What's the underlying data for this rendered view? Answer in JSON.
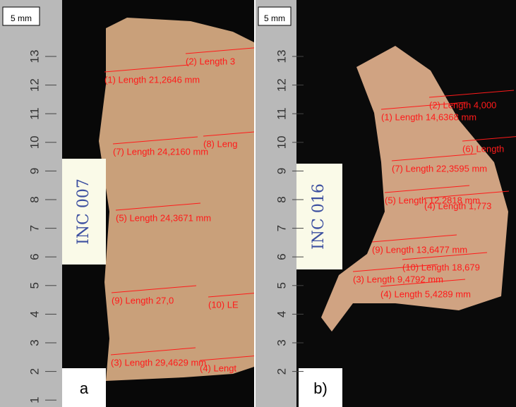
{
  "panels": [
    {
      "scale_bar": "5 mm",
      "ruler_labels": [
        13,
        12,
        11,
        10,
        9,
        8,
        7,
        6,
        5,
        4,
        3,
        2,
        1
      ],
      "sample_label": "INC 007",
      "panel_label": "a",
      "measurements": [
        "(2) Length 3",
        "(1) Length 21,2646 mm",
        "(8) Leng",
        "(7) Length 24,2160 mm",
        "(5) Length 24,3671 mm",
        "(9) Length 27,0",
        "(10) LE",
        "(3) Length 29,4629 mm",
        "(4) Lengt"
      ]
    },
    {
      "scale_bar": "5 mm",
      "ruler_labels": [
        13,
        12,
        11,
        10,
        9,
        8,
        7,
        6,
        5,
        4,
        3,
        2
      ],
      "sample_label": "INC 016",
      "panel_label": "b)",
      "measurements": [
        "(2) Length 4,000",
        "(1) Length 14,6368 mm",
        "(6) Length",
        "(7) Length 22,3595 mm",
        "(5) Length 12,2818 mm",
        "(4) Length 1,773",
        "(9) Length 13,6477 mm",
        "(10) Length 18,679",
        "(3) Length 9,4792 mm",
        "(4) Length 5,4289 mm"
      ]
    }
  ]
}
